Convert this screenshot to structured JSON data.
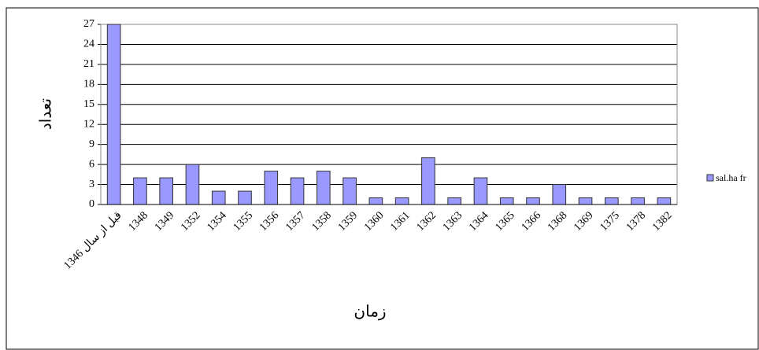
{
  "chart_data": {
    "type": "bar",
    "x_label": "زمان",
    "y_label": "تعداد",
    "categories": [
      "قبل از سال 1346",
      "1348",
      "1349",
      "1352",
      "1354",
      "1355",
      "1356",
      "1357",
      "1358",
      "1359",
      "1360",
      "1361",
      "1362",
      "1363",
      "1364",
      "1365",
      "1366",
      "1368",
      "1369",
      "1375",
      "1378",
      "1382"
    ],
    "series": [
      {
        "name": "sal.ha fr",
        "color": "#9999ff",
        "values": [
          27,
          4,
          4,
          6,
          2,
          2,
          5,
          4,
          5,
          4,
          1,
          1,
          7,
          1,
          4,
          1,
          1,
          3,
          1,
          1,
          1,
          1
        ]
      }
    ],
    "ylim": [
      0,
      27
    ],
    "yticks": [
      0,
      3,
      6,
      9,
      12,
      15,
      18,
      21,
      24,
      27
    ],
    "grid": true,
    "legend": "right"
  }
}
